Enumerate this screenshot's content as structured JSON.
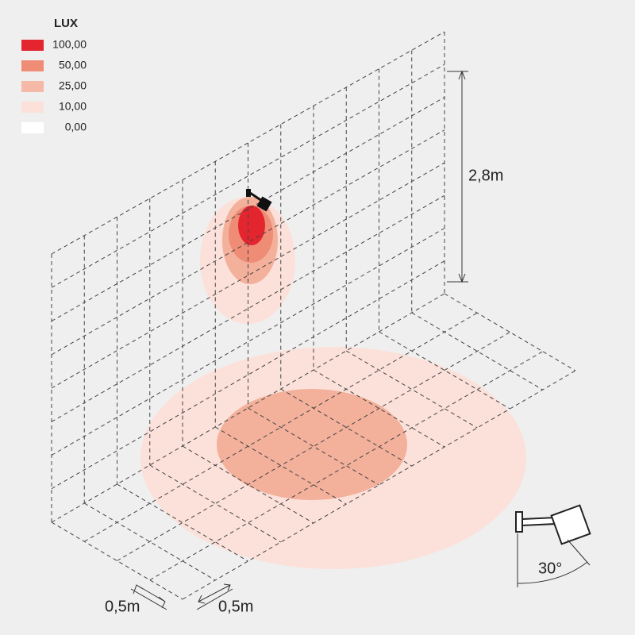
{
  "legend": {
    "title": "LUX",
    "items": [
      {
        "label": "100,00",
        "color": "#e3252f"
      },
      {
        "label": "50,00",
        "color": "#ef8c76"
      },
      {
        "label": "25,00",
        "color": "#f6b9a8"
      },
      {
        "label": "10,00",
        "color": "#fbe1d9"
      },
      {
        "label": "0,00",
        "color": "#ffffff"
      }
    ]
  },
  "dimensions": {
    "height": "2,8m",
    "grid_x": "0,5m",
    "grid_y": "0,5m",
    "angle": "30°"
  }
}
